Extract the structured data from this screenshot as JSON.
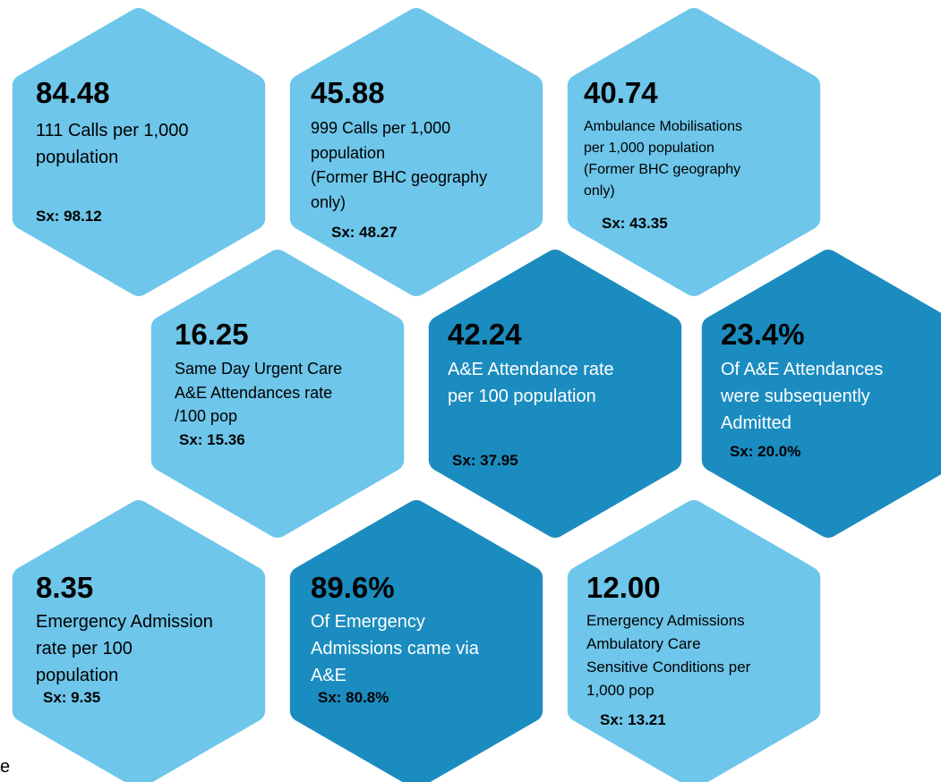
{
  "tiles": [
    {
      "value": "84.48",
      "lines": [
        "111 Calls per 1,000",
        "population"
      ],
      "sx": "Sx: 98.12"
    },
    {
      "value": "45.88",
      "lines": [
        "999 Calls per 1,000",
        "population",
        "(Former BHC geography",
        "only)"
      ],
      "sx": "Sx: 48.27"
    },
    {
      "value": "40.74",
      "lines": [
        "Ambulance Mobilisations",
        "per 1,000 population",
        "(Former BHC geography",
        "only)"
      ],
      "sx": "Sx: 43.35"
    },
    {
      "value": "16.25",
      "lines": [
        "Same Day Urgent Care",
        "A&E Attendances rate",
        "/100 pop"
      ],
      "sx": "Sx: 15.36"
    },
    {
      "value": "42.24",
      "lines": [
        "A&E Attendance rate",
        "per 100 population"
      ],
      "sx": "Sx: 37.95"
    },
    {
      "value": "23.4%",
      "lines": [
        "Of A&E Attendances",
        "were subsequently",
        "Admitted"
      ],
      "sx": "Sx: 20.0%"
    },
    {
      "value": "8.35",
      "lines": [
        "Emergency Admission",
        "rate per 100",
        "population"
      ],
      "sx": "Sx: 9.35"
    },
    {
      "value": "89.6%",
      "lines": [
        "Of Emergency",
        "Admissions came via",
        "A&E"
      ],
      "sx": "Sx: 80.8%"
    },
    {
      "value": "12.00",
      "lines": [
        "Emergency Admissions",
        "Ambulatory Care",
        "Sensitive Conditions per",
        "1,000 pop"
      ],
      "sx": "Sx: 13.21"
    }
  ],
  "stray_text": "e"
}
